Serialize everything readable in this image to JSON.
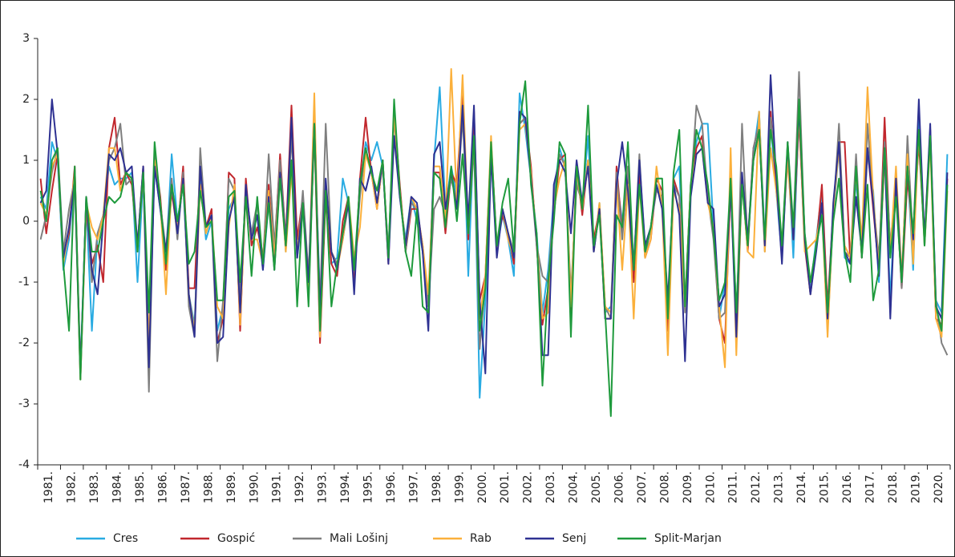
{
  "chart_data": {
    "type": "line",
    "categories": [
      "1981.",
      null,
      null,
      null,
      "1982.",
      null,
      null,
      null,
      "1983.",
      null,
      null,
      null,
      "1984.",
      null,
      null,
      null,
      "1985.",
      null,
      null,
      null,
      "1986.",
      null,
      null,
      null,
      "1987.",
      null,
      null,
      null,
      "1988.",
      null,
      null,
      null,
      "1989.",
      null,
      null,
      null,
      "1990.",
      null,
      null,
      null,
      "1991.",
      null,
      null,
      null,
      "1992.",
      null,
      null,
      null,
      "1993.",
      null,
      null,
      null,
      "1994.",
      null,
      null,
      null,
      "1995.",
      null,
      null,
      null,
      "1996.",
      null,
      null,
      null,
      "1997.",
      null,
      null,
      null,
      "1998.",
      null,
      null,
      null,
      "1999.",
      null,
      null,
      null,
      "2000.",
      null,
      null,
      null,
      "2001.",
      null,
      null,
      null,
      "2002.",
      null,
      null,
      null,
      "2003.",
      null,
      null,
      null,
      "2004.",
      null,
      null,
      null,
      "2005.",
      null,
      null,
      null,
      "2006.",
      null,
      null,
      null,
      "2007.",
      null,
      null,
      null,
      "2008.",
      null,
      null,
      null,
      "2009.",
      null,
      null,
      null,
      "2010.",
      null,
      null,
      null,
      "2011.",
      null,
      null,
      null,
      "2012.",
      null,
      null,
      null,
      "2013.",
      null,
      null,
      null,
      "2014.",
      null,
      null,
      null,
      "2015.",
      null,
      null,
      null,
      "2016.",
      null,
      null,
      null,
      "2017.",
      null,
      null,
      null,
      "2018.",
      null,
      null,
      null,
      "2019.",
      null,
      null,
      null,
      "2020.",
      null,
      null,
      null
    ],
    "ylim": [
      -4,
      3
    ],
    "yticks": [
      -4,
      -3,
      -2,
      -1,
      0,
      1,
      2,
      3
    ],
    "series": [
      {
        "name": "Cres",
        "color": "#29abe2",
        "values": [
          0.4,
          0.2,
          1.3,
          1.0,
          -0.8,
          -0.3,
          0.7,
          -2.4,
          0.3,
          -1.8,
          -0.2,
          0.1,
          0.9,
          0.6,
          0.7,
          0.7,
          0.8,
          -1.0,
          0.7,
          -2.2,
          0.9,
          0.2,
          -0.6,
          1.1,
          0.0,
          0.6,
          -1.2,
          -1.7,
          0.7,
          -0.3,
          0.0,
          -1.8,
          -1.4,
          0.2,
          0.4,
          -1.6,
          0.5,
          -0.2,
          0.1,
          -0.8,
          0.3,
          -0.5,
          0.9,
          -0.5,
          1.6,
          -0.6,
          0.2,
          -1.1,
          1.5,
          -1.3,
          0.6,
          -0.7,
          -0.6,
          0.7,
          0.3,
          -1.0,
          0.5,
          1.3,
          1.0,
          1.3,
          0.9,
          -0.5,
          1.8,
          0.4,
          -0.3,
          0.4,
          0.0,
          -0.5,
          -1.4,
          1.0,
          2.2,
          0.2,
          0.9,
          0.4,
          2.0,
          -0.9,
          1.5,
          -2.9,
          -1.3,
          1.1,
          -0.5,
          0.1,
          -0.3,
          -0.9,
          2.1,
          1.5,
          0.7,
          -0.2,
          -1.5,
          -0.8,
          0.4,
          1.2,
          0.9,
          -1.3,
          0.7,
          0.3,
          1.4,
          -0.5,
          0.3,
          -1.5,
          -1.4,
          0.7,
          0.0,
          0.7,
          -0.7,
          0.9,
          -0.4,
          -0.1,
          0.6,
          0.3,
          -1.5,
          0.7,
          0.9,
          -1.4,
          0.5,
          1.3,
          1.6,
          1.6,
          -0.1,
          -1.6,
          -1.0,
          0.5,
          -1.5,
          0.7,
          -0.4,
          1.1,
          1.8,
          -0.3,
          1.6,
          0.5,
          -0.6,
          1.2,
          -0.6,
          1.8,
          -0.2,
          -1.1,
          -0.3,
          0.5,
          -1.8,
          0.1,
          1.2,
          -0.6,
          -0.7,
          0.7,
          -0.5,
          1.1,
          0.5,
          -1.0,
          1.1,
          -1.3,
          0.7,
          -1.0,
          0.9,
          -0.8,
          1.8,
          -0.4,
          1.5,
          -1.3,
          -1.5,
          1.1
        ]
      },
      {
        "name": "Gospić",
        "color": "#c1272d",
        "values": [
          0.7,
          -0.2,
          0.5,
          1.1,
          -0.6,
          -0.2,
          0.9,
          -2.5,
          0.2,
          -0.7,
          -0.4,
          -1.0,
          1.2,
          1.7,
          0.6,
          0.8,
          0.6,
          -0.4,
          0.9,
          -2.3,
          1.1,
          0.4,
          -0.8,
          0.5,
          -0.2,
          0.9,
          -1.1,
          -1.1,
          0.9,
          -0.1,
          0.2,
          -2.0,
          -1.6,
          0.8,
          0.7,
          -1.8,
          0.7,
          -0.4,
          -0.1,
          -0.6,
          0.6,
          -0.5,
          1.1,
          -0.3,
          1.9,
          -0.3,
          0.4,
          -1.2,
          1.5,
          -2.0,
          0.4,
          -0.7,
          -0.9,
          0.0,
          0.4,
          -1.1,
          0.7,
          1.7,
          0.8,
          0.2,
          1.0,
          -0.7,
          1.8,
          0.6,
          -0.5,
          0.2,
          0.2,
          -0.4,
          -1.4,
          0.8,
          0.8,
          -0.2,
          0.8,
          0.6,
          2.1,
          -0.3,
          1.8,
          -1.3,
          -0.9,
          1.3,
          -0.4,
          0.1,
          -0.2,
          -0.7,
          1.6,
          1.7,
          0.9,
          -0.4,
          -1.7,
          -1.1,
          0.1,
          1.0,
          1.1,
          -1.5,
          0.9,
          0.1,
          1.0,
          -0.3,
          0.2,
          -1.6,
          -1.6,
          0.9,
          -0.2,
          0.8,
          -1.0,
          0.8,
          -0.6,
          -0.3,
          0.7,
          0.5,
          -1.8,
          0.7,
          0.4,
          -1.4,
          0.6,
          1.2,
          1.4,
          0.4,
          -0.2,
          -1.6,
          -2.0,
          0.6,
          -1.6,
          0.7,
          -0.5,
          1.2,
          1.6,
          -0.4,
          1.8,
          0.6,
          -0.4,
          1.2,
          -0.3,
          1.7,
          -0.4,
          -1.2,
          -0.4,
          0.6,
          -1.4,
          0.2,
          1.3,
          1.3,
          -0.7,
          0.9,
          -0.6,
          1.2,
          0.2,
          -0.8,
          1.7,
          -0.5,
          0.6,
          -1.1,
          0.7,
          -0.2,
          1.3,
          -0.3,
          1.5,
          -1.6,
          -1.7,
          0.7
        ]
      },
      {
        "name": "Mali Lošinj",
        "color": "#7f7f7f",
        "values": [
          -0.3,
          0.1,
          0.8,
          1.2,
          -0.5,
          0.2,
          0.7,
          -2.6,
          0.4,
          -1.0,
          -0.2,
          0.1,
          1.0,
          1.2,
          1.6,
          0.6,
          0.7,
          -0.4,
          0.8,
          -2.8,
          1.1,
          0.3,
          -0.5,
          0.7,
          -0.3,
          0.8,
          -1.4,
          -1.9,
          1.2,
          -0.1,
          0.1,
          -2.3,
          -1.3,
          0.7,
          0.5,
          -1.2,
          0.4,
          -0.2,
          0.3,
          -0.7,
          1.1,
          -0.4,
          1.0,
          -0.3,
          1.4,
          -0.6,
          0.5,
          -0.9,
          1.5,
          -1.4,
          1.6,
          -0.5,
          -0.7,
          -0.3,
          0.3,
          -0.8,
          0.4,
          1.2,
          0.8,
          0.3,
          0.9,
          -0.5,
          1.7,
          0.5,
          -0.5,
          0.3,
          0.2,
          -0.5,
          -1.4,
          0.2,
          0.4,
          0.1,
          0.7,
          0.3,
          1.7,
          -0.1,
          1.2,
          -2.1,
          -1.0,
          1.2,
          -0.5,
          0.2,
          -0.2,
          -0.5,
          1.6,
          1.7,
          0.7,
          -0.4,
          -0.9,
          -1.0,
          0.3,
          1.1,
          0.9,
          -1.2,
          0.6,
          0.3,
          1.0,
          -0.5,
          0.2,
          -1.4,
          -1.6,
          0.8,
          -0.3,
          0.9,
          -0.8,
          1.1,
          -0.6,
          -0.1,
          0.5,
          0.4,
          -1.6,
          0.6,
          0.4,
          -1.5,
          0.5,
          1.9,
          1.6,
          0.4,
          -0.3,
          -1.6,
          -1.5,
          0.7,
          -1.8,
          1.6,
          -0.4,
          1.2,
          1.6,
          -0.5,
          1.7,
          0.8,
          -0.5,
          1.2,
          -0.2,
          2.45,
          -0.3,
          -1.2,
          -0.4,
          0.3,
          -1.5,
          0.1,
          1.6,
          -0.5,
          -0.6,
          1.1,
          -0.6,
          1.6,
          0.3,
          -0.6,
          1.3,
          -0.4,
          0.6,
          -1.1,
          1.4,
          -0.4,
          1.5,
          -0.3,
          1.4,
          -1.3,
          -2.0,
          -2.2
        ]
      },
      {
        "name": "Rab",
        "color": "#fbb03b",
        "values": [
          0.3,
          0.1,
          0.9,
          1.1,
          -0.7,
          -0.1,
          0.8,
          -2.6,
          0.3,
          -0.1,
          -0.3,
          0.1,
          1.2,
          1.2,
          0.5,
          0.8,
          0.7,
          -0.5,
          0.8,
          -2.0,
          1.0,
          0.3,
          -1.2,
          0.6,
          -0.1,
          0.7,
          -1.2,
          -1.8,
          0.6,
          -0.2,
          0.1,
          -1.4,
          -1.6,
          -0.1,
          0.6,
          -1.7,
          0.5,
          -0.3,
          -0.3,
          -0.7,
          0.5,
          -0.6,
          0.8,
          -0.5,
          0.8,
          -0.5,
          0.3,
          -1.1,
          2.1,
          -1.9,
          0.6,
          -0.5,
          -0.8,
          -0.3,
          0.4,
          -0.6,
          -0.1,
          1.1,
          0.8,
          0.2,
          1.0,
          -0.6,
          1.8,
          0.5,
          -0.4,
          0.4,
          0.2,
          -0.4,
          -1.2,
          0.9,
          0.9,
          0.0,
          2.5,
          0.3,
          2.4,
          -0.2,
          1.4,
          -1.6,
          -0.9,
          1.4,
          -0.5,
          0.2,
          -0.3,
          -0.6,
          1.5,
          1.6,
          0.8,
          -0.3,
          -1.6,
          -1.5,
          0.2,
          0.7,
          1.0,
          -1.4,
          0.8,
          0.2,
          1.0,
          -0.5,
          0.3,
          -1.4,
          -1.5,
          0.6,
          -0.8,
          0.6,
          -1.6,
          0.6,
          -0.6,
          -0.3,
          0.9,
          0.2,
          -2.2,
          0.5,
          0.2,
          -1.4,
          0.6,
          1.1,
          1.2,
          0.3,
          -0.1,
          -1.4,
          -2.4,
          1.2,
          -2.2,
          0.7,
          -0.5,
          -0.6,
          1.8,
          -0.5,
          1.2,
          0.5,
          -0.4,
          1.0,
          -0.3,
          1.8,
          -0.5,
          -0.4,
          -0.3,
          0.2,
          -1.9,
          0.2,
          1.2,
          -0.4,
          -0.6,
          0.8,
          -0.3,
          2.2,
          0.4,
          -0.8,
          1.0,
          -0.5,
          0.9,
          -0.9,
          1.1,
          -0.7,
          1.5,
          -0.4,
          1.3,
          -1.6,
          -1.9,
          0.5
        ]
      },
      {
        "name": "Senj",
        "color": "#2e3192",
        "values": [
          0.3,
          0.5,
          2.0,
          1.1,
          -0.6,
          -0.1,
          0.7,
          -2.5,
          0.4,
          -0.8,
          -1.2,
          0.0,
          1.1,
          1.0,
          1.2,
          0.8,
          0.9,
          -0.4,
          0.9,
          -2.4,
          0.9,
          0.2,
          -0.5,
          0.6,
          -0.2,
          0.7,
          -1.2,
          -1.9,
          0.9,
          -0.1,
          0.1,
          -2.0,
          -1.9,
          0.0,
          0.4,
          -1.5,
          0.6,
          -0.3,
          0.1,
          -0.8,
          0.4,
          -0.8,
          0.8,
          -0.4,
          1.7,
          -0.6,
          0.3,
          -1.0,
          1.6,
          -1.5,
          0.7,
          -0.5,
          -0.8,
          -0.2,
          0.3,
          -1.2,
          0.7,
          0.5,
          0.9,
          0.3,
          1.0,
          -0.7,
          1.4,
          0.4,
          -0.4,
          0.4,
          0.3,
          -0.5,
          -1.8,
          1.1,
          1.3,
          0.2,
          0.8,
          0.2,
          1.9,
          0.0,
          1.9,
          -1.3,
          -2.5,
          1.1,
          -0.6,
          0.2,
          -0.2,
          -0.6,
          1.8,
          1.7,
          0.7,
          -0.3,
          -2.2,
          -2.2,
          0.6,
          1.0,
          0.8,
          -0.2,
          1.0,
          0.3,
          0.9,
          -0.5,
          0.2,
          -1.6,
          -1.6,
          0.6,
          1.3,
          0.5,
          -0.8,
          1.0,
          -0.4,
          -0.1,
          0.6,
          0.2,
          -1.3,
          0.6,
          0.1,
          -2.3,
          0.4,
          1.1,
          1.2,
          0.3,
          0.2,
          -1.4,
          -1.2,
          0.6,
          -1.9,
          0.8,
          -0.3,
          1.0,
          1.5,
          -0.4,
          2.4,
          0.7,
          -0.7,
          1.3,
          -0.3,
          1.9,
          -0.3,
          -1.2,
          -0.5,
          0.3,
          -1.6,
          0.3,
          1.3,
          -0.5,
          -0.7,
          0.4,
          -0.5,
          1.2,
          0.3,
          -0.9,
          1.2,
          -1.6,
          0.7,
          -1.0,
          0.9,
          -0.3,
          2.0,
          -0.3,
          1.6,
          -1.4,
          -1.6,
          0.8
        ]
      },
      {
        "name": "Split-Marjan",
        "color": "#1e9a3c",
        "values": [
          0.5,
          0.0,
          1.0,
          1.2,
          -0.7,
          -1.8,
          0.9,
          -2.6,
          0.4,
          -0.5,
          -0.5,
          0.0,
          0.4,
          0.3,
          0.4,
          0.8,
          0.7,
          -0.5,
          0.8,
          -1.5,
          1.3,
          0.3,
          -0.7,
          0.6,
          0.0,
          0.6,
          -0.7,
          -0.5,
          0.5,
          -0.1,
          0.0,
          -1.3,
          -1.3,
          0.4,
          0.5,
          -1.0,
          0.4,
          -0.9,
          0.4,
          -0.7,
          0.3,
          -0.8,
          0.7,
          -0.4,
          1.0,
          -1.4,
          0.3,
          -1.4,
          1.6,
          -1.8,
          0.5,
          -1.4,
          -0.7,
          -0.2,
          0.4,
          -0.8,
          0.6,
          1.2,
          0.8,
          0.5,
          1.0,
          -0.6,
          2.0,
          0.5,
          -0.5,
          -0.9,
          0.2,
          -1.4,
          -1.5,
          0.8,
          0.7,
          -0.1,
          0.9,
          0.0,
          1.1,
          -0.2,
          1.4,
          -1.8,
          -1.1,
          1.3,
          -0.4,
          0.3,
          0.7,
          -0.5,
          1.6,
          2.3,
          0.6,
          -0.2,
          -2.7,
          -1.0,
          0.0,
          1.3,
          1.1,
          -1.9,
          0.9,
          0.2,
          1.9,
          -0.4,
          0.1,
          -1.5,
          -3.2,
          0.1,
          -0.1,
          1.3,
          -0.8,
          0.6,
          -0.5,
          -0.1,
          0.7,
          0.7,
          -1.6,
          0.8,
          1.5,
          -1.4,
          0.6,
          1.5,
          1.2,
          0.6,
          -0.2,
          -1.3,
          -1.0,
          0.7,
          -1.5,
          0.6,
          -0.4,
          1.0,
          1.5,
          -0.3,
          1.5,
          0.9,
          -0.4,
          1.3,
          -0.1,
          2.0,
          -0.2,
          -1.0,
          -0.4,
          0.1,
          -1.5,
          0.0,
          0.7,
          -0.5,
          -1.0,
          0.9,
          -0.6,
          0.6,
          -1.3,
          -0.8,
          1.2,
          -0.6,
          0.4,
          -1.0,
          0.9,
          -0.2,
          1.5,
          -0.4,
          1.4,
          -1.4,
          -1.8,
          0.6
        ]
      }
    ]
  }
}
